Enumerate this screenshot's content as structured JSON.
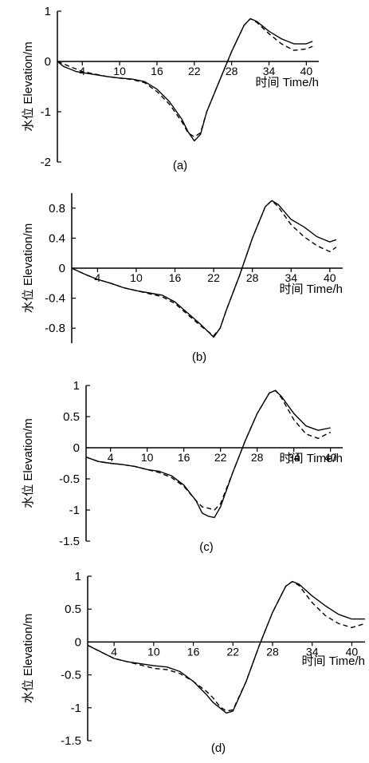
{
  "figure": {
    "y_axis_label": "水位 Elevation/m",
    "x_axis_label": "时间 Time/h",
    "colors": {
      "ink": "#000000",
      "background": "#ffffff"
    }
  },
  "chart_data": [
    {
      "type": "line",
      "panel_label": "(a)",
      "xlabel": "时间 Time/h",
      "ylabel": "水位 Elevation/m",
      "xlim": [
        0,
        42
      ],
      "ylim": [
        -2,
        1
      ],
      "x_ticks": [
        4,
        10,
        16,
        22,
        28,
        34,
        40
      ],
      "y_ticks": [
        -2,
        -1,
        0,
        1
      ],
      "y_tick_labels": [
        "-2",
        "-1",
        "0",
        "1"
      ],
      "x_tick_labels_side": "below",
      "series": [
        {
          "style": "solid",
          "x": [
            0,
            1,
            2,
            3,
            4,
            6,
            8,
            10,
            12,
            14,
            16,
            18,
            20,
            21,
            22,
            23,
            24,
            26,
            28,
            30,
            31,
            32,
            34,
            36,
            38,
            40,
            41
          ],
          "y": [
            0,
            -0.1,
            -0.15,
            -0.2,
            -0.22,
            -0.26,
            -0.3,
            -0.33,
            -0.35,
            -0.4,
            -0.55,
            -0.8,
            -1.15,
            -1.4,
            -1.58,
            -1.45,
            -1.0,
            -0.4,
            0.2,
            0.72,
            0.85,
            0.8,
            0.6,
            0.45,
            0.35,
            0.35,
            0.4
          ]
        },
        {
          "style": "dashed",
          "x": [
            0,
            1,
            2,
            3,
            4,
            6,
            8,
            10,
            12,
            14,
            16,
            18,
            20,
            21,
            22,
            23,
            24,
            26,
            28,
            30,
            31,
            32,
            34,
            36,
            38,
            40,
            41
          ],
          "y": [
            0,
            -0.05,
            -0.1,
            -0.15,
            -0.2,
            -0.25,
            -0.3,
            -0.33,
            -0.36,
            -0.42,
            -0.6,
            -0.85,
            -1.2,
            -1.42,
            -1.5,
            -1.42,
            -1.0,
            -0.4,
            0.2,
            0.72,
            0.85,
            0.78,
            0.55,
            0.35,
            0.22,
            0.25,
            0.3
          ]
        }
      ]
    },
    {
      "type": "line",
      "panel_label": "(b)",
      "xlabel": "时间 Time/h",
      "ylabel": "水位 Elevation/m",
      "xlim": [
        0,
        42
      ],
      "ylim": [
        -1,
        1
      ],
      "x_ticks": [
        4,
        10,
        16,
        22,
        28,
        34,
        40
      ],
      "y_ticks": [
        -0.8,
        -0.4,
        0,
        0.4,
        0.8
      ],
      "y_tick_labels": [
        "-0.8",
        "-0.4",
        "0",
        "0.4",
        "0.8"
      ],
      "x_tick_labels_side": "below",
      "series": [
        {
          "style": "solid",
          "x": [
            0,
            2,
            4,
            6,
            8,
            10,
            12,
            14,
            16,
            18,
            20,
            22,
            23,
            24,
            26,
            28,
            30,
            31,
            32,
            34,
            36,
            38,
            40,
            41
          ],
          "y": [
            0,
            -0.08,
            -0.15,
            -0.2,
            -0.26,
            -0.3,
            -0.33,
            -0.36,
            -0.45,
            -0.6,
            -0.75,
            -0.92,
            -0.8,
            -0.55,
            -0.1,
            0.4,
            0.82,
            0.9,
            0.85,
            0.65,
            0.55,
            0.42,
            0.35,
            0.38
          ]
        },
        {
          "style": "dashed",
          "x": [
            0,
            2,
            4,
            6,
            8,
            10,
            12,
            14,
            16,
            18,
            20,
            22,
            23,
            24,
            26,
            28,
            30,
            31,
            32,
            34,
            36,
            38,
            40,
            41
          ],
          "y": [
            0,
            -0.08,
            -0.15,
            -0.2,
            -0.26,
            -0.3,
            -0.34,
            -0.38,
            -0.47,
            -0.62,
            -0.77,
            -0.9,
            -0.8,
            -0.55,
            -0.1,
            0.4,
            0.82,
            0.9,
            0.82,
            0.58,
            0.42,
            0.3,
            0.22,
            0.28
          ]
        }
      ]
    },
    {
      "type": "line",
      "panel_label": "(c)",
      "xlabel": "时间 Time/h",
      "ylabel": "水位 Elevation/m",
      "xlim": [
        0,
        42
      ],
      "ylim": [
        -1.5,
        1
      ],
      "x_ticks": [
        4,
        10,
        16,
        22,
        28,
        34,
        40
      ],
      "y_ticks": [
        -1.5,
        -1,
        -0.5,
        0,
        0.5,
        1
      ],
      "y_tick_labels": [
        "-1.5",
        "-1",
        "-0.5",
        "0",
        "0.5",
        "1"
      ],
      "x_tick_labels_side": "below",
      "series": [
        {
          "style": "solid",
          "x": [
            0,
            2,
            4,
            6,
            8,
            10,
            12,
            14,
            16,
            18,
            19,
            20,
            21,
            22,
            24,
            26,
            28,
            30,
            31,
            32,
            34,
            36,
            38,
            40
          ],
          "y": [
            -0.15,
            -0.22,
            -0.25,
            -0.27,
            -0.3,
            -0.35,
            -0.38,
            -0.45,
            -0.6,
            -0.85,
            -1.05,
            -1.1,
            -1.12,
            -0.95,
            -0.4,
            0.1,
            0.55,
            0.88,
            0.92,
            0.82,
            0.55,
            0.35,
            0.28,
            0.32
          ]
        },
        {
          "style": "dashed",
          "x": [
            0,
            2,
            4,
            6,
            8,
            10,
            12,
            14,
            16,
            18,
            19,
            20,
            21,
            22,
            24,
            26,
            28,
            30,
            31,
            32,
            34,
            36,
            38,
            40
          ],
          "y": [
            -0.15,
            -0.22,
            -0.25,
            -0.27,
            -0.3,
            -0.35,
            -0.4,
            -0.48,
            -0.62,
            -0.85,
            -0.95,
            -0.97,
            -1.0,
            -0.9,
            -0.4,
            0.1,
            0.55,
            0.88,
            0.92,
            0.8,
            0.45,
            0.22,
            0.15,
            0.25
          ]
        }
      ]
    },
    {
      "type": "line",
      "panel_label": "(d)",
      "xlabel": "时间 Time/h",
      "ylabel": "水位 Elevation/m",
      "xlim": [
        0,
        42
      ],
      "ylim": [
        -1.5,
        1
      ],
      "x_ticks": [
        4,
        10,
        16,
        22,
        28,
        34,
        40
      ],
      "y_ticks": [
        -1.5,
        -1,
        -0.5,
        0,
        0.5,
        1
      ],
      "y_tick_labels": [
        "-1.5",
        "-1",
        "-0.5",
        "0",
        "0.5",
        "1"
      ],
      "x_tick_labels_side": "below",
      "series": [
        {
          "style": "solid",
          "x": [
            0,
            2,
            4,
            6,
            8,
            10,
            12,
            14,
            16,
            18,
            19,
            20,
            21,
            22,
            24,
            26,
            28,
            30,
            31,
            32,
            34,
            36,
            38,
            40,
            42
          ],
          "y": [
            -0.05,
            -0.15,
            -0.25,
            -0.3,
            -0.33,
            -0.36,
            -0.38,
            -0.45,
            -0.6,
            -0.8,
            -0.92,
            -1.0,
            -1.08,
            -1.05,
            -0.6,
            -0.05,
            0.45,
            0.85,
            0.92,
            0.88,
            0.7,
            0.55,
            0.42,
            0.35,
            0.35
          ]
        },
        {
          "style": "dashed",
          "x": [
            0,
            2,
            4,
            6,
            8,
            10,
            12,
            14,
            16,
            18,
            19,
            20,
            21,
            22,
            24,
            26,
            28,
            30,
            31,
            32,
            34,
            36,
            38,
            40,
            42
          ],
          "y": [
            -0.05,
            -0.15,
            -0.25,
            -0.3,
            -0.35,
            -0.4,
            -0.42,
            -0.48,
            -0.6,
            -0.75,
            -0.85,
            -0.98,
            -1.05,
            -1.03,
            -0.6,
            -0.05,
            0.45,
            0.85,
            0.92,
            0.86,
            0.6,
            0.4,
            0.28,
            0.22,
            0.28
          ]
        }
      ]
    }
  ]
}
